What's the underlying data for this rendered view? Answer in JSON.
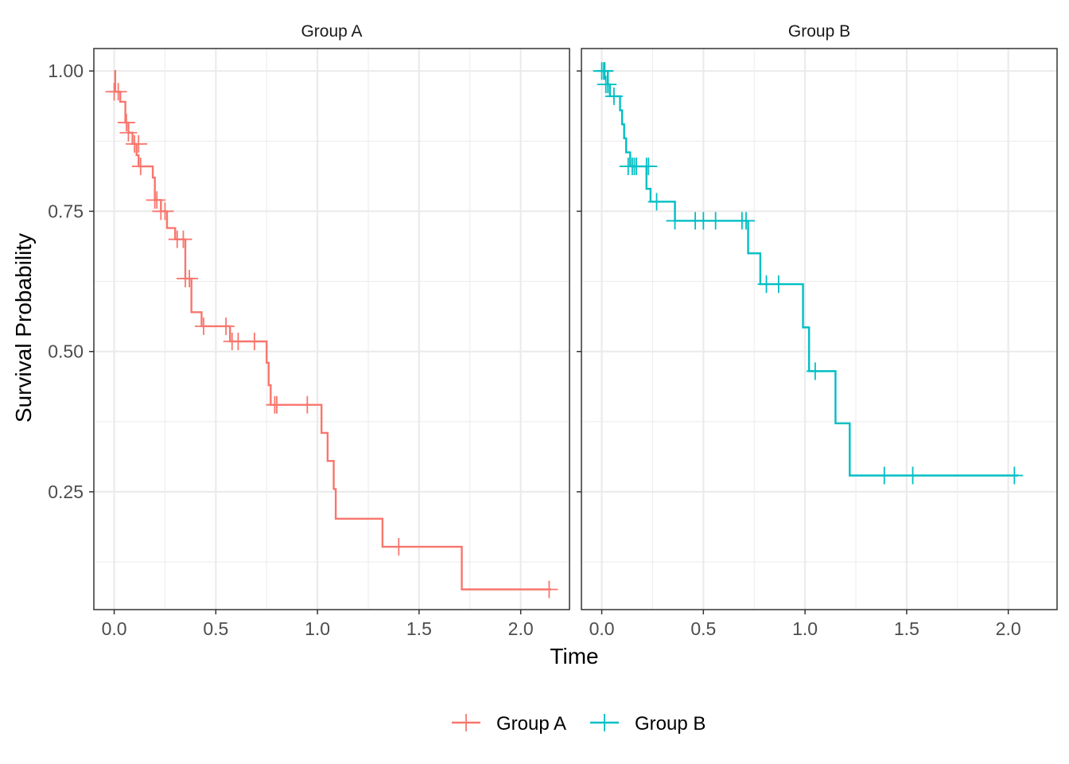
{
  "chart_data": {
    "type": "line",
    "subtype": "kaplan-meier-step",
    "xlabel": "Time",
    "ylabel": "Survival Probability",
    "x_ticks": [
      0.0,
      0.5,
      1.0,
      1.5,
      2.0
    ],
    "x_tick_labels": [
      "0.0",
      "0.5",
      "1.0",
      "1.5",
      "2.0"
    ],
    "y_ticks": [
      0.25,
      0.5,
      0.75,
      1.0
    ],
    "y_tick_labels": [
      "0.25",
      "0.50",
      "0.75",
      "1.00"
    ],
    "xlim": [
      -0.1,
      2.24
    ],
    "ylim": [
      0.04,
      1.04
    ],
    "grid": true,
    "legend": {
      "position": "bottom",
      "entries": [
        "Group A",
        "Group B"
      ]
    },
    "panels": [
      {
        "name": "Group A",
        "color": "#F8766D",
        "steps": [
          [
            0.0,
            1.0
          ],
          [
            0.005,
            0.963
          ],
          [
            0.03,
            0.945
          ],
          [
            0.055,
            0.908
          ],
          [
            0.07,
            0.89
          ],
          [
            0.09,
            0.87
          ],
          [
            0.11,
            0.85
          ],
          [
            0.12,
            0.83
          ],
          [
            0.19,
            0.81
          ],
          [
            0.2,
            0.77
          ],
          [
            0.23,
            0.75
          ],
          [
            0.26,
            0.72
          ],
          [
            0.3,
            0.7
          ],
          [
            0.35,
            0.63
          ],
          [
            0.38,
            0.57
          ],
          [
            0.43,
            0.545
          ],
          [
            0.57,
            0.518
          ],
          [
            0.75,
            0.48
          ],
          [
            0.76,
            0.44
          ],
          [
            0.77,
            0.405
          ],
          [
            1.02,
            0.355
          ],
          [
            1.05,
            0.305
          ],
          [
            1.08,
            0.255
          ],
          [
            1.09,
            0.202
          ],
          [
            1.32,
            0.152
          ],
          [
            1.71,
            0.076
          ]
        ],
        "end_x": 2.15,
        "censored": [
          [
            0.0,
            0.963
          ],
          [
            0.02,
            0.963
          ],
          [
            0.06,
            0.908
          ],
          [
            0.07,
            0.89
          ],
          [
            0.1,
            0.87
          ],
          [
            0.12,
            0.87
          ],
          [
            0.13,
            0.83
          ],
          [
            0.2,
            0.77
          ],
          [
            0.21,
            0.77
          ],
          [
            0.23,
            0.75
          ],
          [
            0.25,
            0.75
          ],
          [
            0.31,
            0.7
          ],
          [
            0.34,
            0.7
          ],
          [
            0.35,
            0.63
          ],
          [
            0.37,
            0.63
          ],
          [
            0.44,
            0.545
          ],
          [
            0.55,
            0.545
          ],
          [
            0.58,
            0.518
          ],
          [
            0.61,
            0.518
          ],
          [
            0.69,
            0.518
          ],
          [
            0.79,
            0.405
          ],
          [
            0.8,
            0.405
          ],
          [
            0.95,
            0.405
          ],
          [
            1.4,
            0.152
          ],
          [
            2.14,
            0.076
          ]
        ]
      },
      {
        "name": "Group B",
        "color": "#00BFC4",
        "steps": [
          [
            0.0,
            1.0
          ],
          [
            0.03,
            0.976
          ],
          [
            0.04,
            0.955
          ],
          [
            0.09,
            0.93
          ],
          [
            0.1,
            0.905
          ],
          [
            0.11,
            0.88
          ],
          [
            0.12,
            0.855
          ],
          [
            0.14,
            0.83
          ],
          [
            0.22,
            0.79
          ],
          [
            0.24,
            0.767
          ],
          [
            0.36,
            0.733
          ],
          [
            0.72,
            0.675
          ],
          [
            0.78,
            0.62
          ],
          [
            0.99,
            0.543
          ],
          [
            1.02,
            0.465
          ],
          [
            1.15,
            0.372
          ],
          [
            1.22,
            0.279
          ]
        ],
        "end_x": 2.05,
        "censored": [
          [
            0.0,
            1.0
          ],
          [
            0.01,
            1.0
          ],
          [
            0.015,
            1.0
          ],
          [
            0.02,
            0.976
          ],
          [
            0.03,
            0.976
          ],
          [
            0.06,
            0.955
          ],
          [
            0.13,
            0.83
          ],
          [
            0.15,
            0.83
          ],
          [
            0.16,
            0.83
          ],
          [
            0.17,
            0.83
          ],
          [
            0.22,
            0.83
          ],
          [
            0.23,
            0.83
          ],
          [
            0.27,
            0.767
          ],
          [
            0.36,
            0.733
          ],
          [
            0.46,
            0.733
          ],
          [
            0.5,
            0.733
          ],
          [
            0.56,
            0.733
          ],
          [
            0.69,
            0.733
          ],
          [
            0.71,
            0.733
          ],
          [
            0.81,
            0.62
          ],
          [
            0.87,
            0.62
          ],
          [
            1.05,
            0.465
          ],
          [
            1.39,
            0.279
          ],
          [
            1.53,
            0.279
          ],
          [
            2.03,
            0.279
          ]
        ]
      }
    ]
  }
}
